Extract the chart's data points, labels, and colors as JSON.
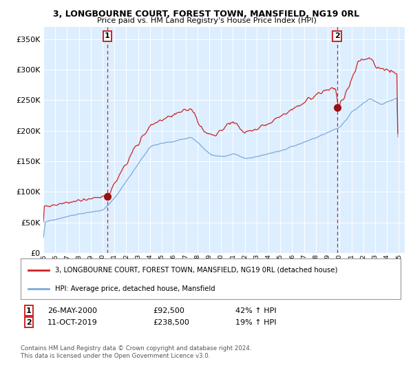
{
  "title": "3, LONGBOURNE COURT, FOREST TOWN, MANSFIELD, NG19 0RL",
  "subtitle": "Price paid vs. HM Land Registry's House Price Index (HPI)",
  "sale1_date": "26-MAY-2000",
  "sale1_price": 92500,
  "sale1_label": "42% ↑ HPI",
  "sale2_date": "11-OCT-2019",
  "sale2_price": 238500,
  "sale2_label": "19% ↑ HPI",
  "legend_line1": "3, LONGBOURNE COURT, FOREST TOWN, MANSFIELD, NG19 0RL (detached house)",
  "legend_line2": "HPI: Average price, detached house, Mansfield",
  "footnote": "Contains HM Land Registry data © Crown copyright and database right 2024.\nThis data is licensed under the Open Government Licence v3.0.",
  "hpi_color": "#7aaadd",
  "property_color": "#cc2222",
  "marker_color": "#991111",
  "vline_color": "#cc2222",
  "bg_color": "#ddeeff",
  "grid_color": "#ffffff",
  "fig_bg": "#ffffff",
  "ylim": [
    0,
    370000
  ],
  "yticks": [
    0,
    50000,
    100000,
    150000,
    200000,
    250000,
    300000,
    350000
  ],
  "sale1_x": 2000.4,
  "sale2_x": 2019.78,
  "xmin": 1995.0,
  "xmax": 2025.5
}
